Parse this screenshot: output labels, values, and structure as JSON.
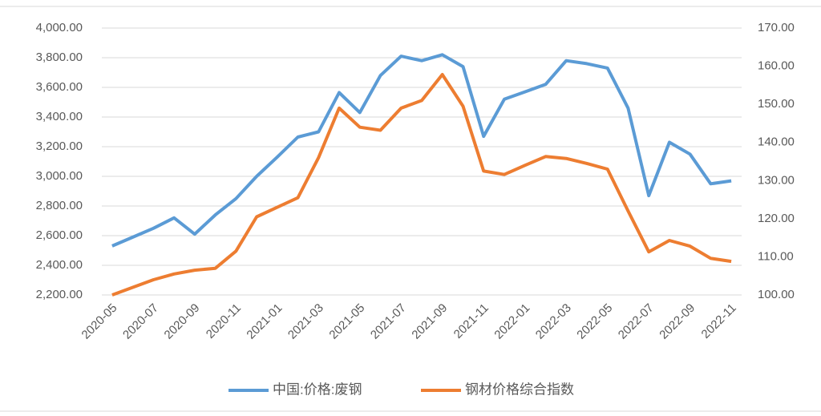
{
  "chart_data": {
    "type": "line",
    "categories": [
      "2020-05",
      null,
      "2020-07",
      null,
      "2020-09",
      null,
      "2020-11",
      null,
      "2021-01",
      null,
      "2021-03",
      null,
      "2021-05",
      null,
      "2021-07",
      null,
      "2021-09",
      null,
      "2021-11",
      null,
      "2022-01",
      null,
      "2022-03",
      null,
      "2022-05",
      null,
      "2022-07",
      null,
      "2022-09",
      null,
      "2022-11"
    ],
    "series": [
      {
        "name": "中国:价格:废钢",
        "color": "#5b9bd5",
        "values": [
          2530,
          2590,
          2650,
          2720,
          2610,
          2740,
          2850,
          3000,
          3130,
          3265,
          3300,
          3565,
          3430,
          3680,
          3810,
          3780,
          3820,
          3740,
          3270,
          3520,
          3570,
          3620,
          3780,
          3760,
          3730,
          3460,
          2870,
          3230,
          3150,
          2950,
          2970
        ]
      },
      {
        "name": "钢材价格综合指数",
        "color": "#ed7d31",
        "axis": "y2",
        "values": [
          100,
          102,
          104,
          105.5,
          106.5,
          107,
          111.5,
          120.5,
          123,
          125.5,
          136,
          149,
          144,
          143.2,
          149,
          151,
          157.8,
          149.5,
          132.5,
          131.6,
          134,
          136.3,
          135.8,
          134.5,
          133,
          122,
          111.3,
          114.3,
          112.8,
          109.6,
          108.8
        ]
      }
    ],
    "ylim": [
      2200,
      4000
    ],
    "yticks": [
      {
        "value": 2200,
        "label": "2,200.00"
      },
      {
        "value": 2400,
        "label": "2,400.00"
      },
      {
        "value": 2600,
        "label": "2,600.00"
      },
      {
        "value": 2800,
        "label": "2,800.00"
      },
      {
        "value": 3000,
        "label": "3,000.00"
      },
      {
        "value": 3200,
        "label": "3,200.00"
      },
      {
        "value": 3400,
        "label": "3,400.00"
      },
      {
        "value": 3600,
        "label": "3,600.00"
      },
      {
        "value": 3800,
        "label": "3,800.00"
      },
      {
        "value": 4000,
        "label": "4,000.00"
      }
    ],
    "y2lim": [
      100,
      170
    ],
    "y2ticks": [
      {
        "value": 100,
        "label": "100.00"
      },
      {
        "value": 110,
        "label": "110.00"
      },
      {
        "value": 120,
        "label": "120.00"
      },
      {
        "value": 130,
        "label": "130.00"
      },
      {
        "value": 140,
        "label": "140.00"
      },
      {
        "value": 150,
        "label": "150.00"
      },
      {
        "value": 160,
        "label": "160.00"
      },
      {
        "value": 170,
        "label": "170.00"
      }
    ],
    "grid": true
  }
}
